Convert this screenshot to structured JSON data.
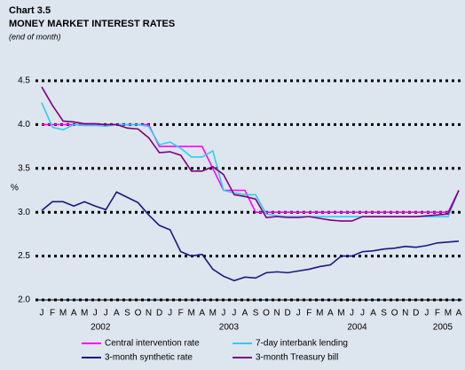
{
  "chart_data": {
    "type": "line",
    "title": "Chart 3.5",
    "subtitle": "MONEY MARKET INTEREST RATES",
    "note": "(end of month)",
    "y_label": "%",
    "categories": [
      "J",
      "F",
      "M",
      "A",
      "M",
      "J",
      "J",
      "A",
      "S",
      "O",
      "N",
      "D",
      "J",
      "F",
      "M",
      "A",
      "M",
      "J",
      "J",
      "A",
      "S",
      "O",
      "N",
      "D",
      "J",
      "F",
      "M",
      "A",
      "M",
      "J",
      "J",
      "A",
      "S",
      "O",
      "N",
      "D",
      "J",
      "F",
      "M",
      "A"
    ],
    "years": [
      {
        "label": "2002",
        "at": 5.5
      },
      {
        "label": "2003",
        "at": 17.5
      },
      {
        "label": "2004",
        "at": 29.5
      },
      {
        "label": "2005",
        "at": 37.5
      }
    ],
    "ylim": [
      2.0,
      4.5
    ],
    "yticks": [
      {
        "value": 2.0,
        "label": "2.0"
      },
      {
        "value": 2.5,
        "label": "2.5"
      },
      {
        "value": 3.0,
        "label": "3.0"
      },
      {
        "value": 3.5,
        "label": "3.5"
      },
      {
        "value": 4.0,
        "label": "4.0"
      },
      {
        "value": 4.5,
        "label": "4.5"
      }
    ],
    "grid": true,
    "series": [
      {
        "name": "Central intervention rate",
        "color": "#ff00ff",
        "values": [
          4.0,
          4.0,
          4.0,
          4.0,
          4.0,
          4.0,
          4.0,
          4.0,
          4.0,
          4.0,
          4.0,
          3.75,
          3.75,
          3.75,
          3.75,
          3.75,
          3.5,
          3.25,
          3.25,
          3.25,
          3.0,
          3.0,
          3.0,
          3.0,
          3.0,
          3.0,
          3.0,
          3.0,
          3.0,
          3.0,
          3.0,
          3.0,
          3.0,
          3.0,
          3.0,
          3.0,
          3.0,
          3.0,
          3.0,
          3.25
        ]
      },
      {
        "name": "7-day interbank lending",
        "color": "#33ccee",
        "values": [
          4.25,
          3.97,
          3.94,
          4.0,
          3.99,
          3.99,
          3.98,
          4.0,
          4.0,
          4.0,
          3.98,
          3.77,
          3.8,
          3.73,
          3.63,
          3.63,
          3.7,
          3.25,
          3.22,
          3.2,
          3.2,
          2.98,
          2.96,
          2.95,
          2.95,
          2.95,
          2.95,
          2.95,
          2.95,
          2.95,
          2.95,
          2.95,
          2.95,
          2.95,
          2.95,
          2.95,
          2.95,
          2.95,
          2.95,
          3.25
        ]
      },
      {
        "name": "3-month synthetic rate",
        "color": "#1a1a80",
        "values": [
          3.02,
          3.12,
          3.12,
          3.07,
          3.12,
          3.07,
          3.03,
          3.23,
          3.17,
          3.11,
          2.97,
          2.85,
          2.8,
          2.55,
          2.5,
          2.52,
          2.35,
          2.27,
          2.22,
          2.26,
          2.25,
          2.31,
          2.32,
          2.31,
          2.33,
          2.35,
          2.38,
          2.4,
          2.5,
          2.5,
          2.55,
          2.56,
          2.58,
          2.59,
          2.61,
          2.6,
          2.62,
          2.65,
          2.66,
          2.67
        ]
      },
      {
        "name": "3-month Treasury bill",
        "color": "#800080",
        "values": [
          4.43,
          4.22,
          4.04,
          4.03,
          4.01,
          4.01,
          4.0,
          4.0,
          3.96,
          3.95,
          3.85,
          3.68,
          3.69,
          3.65,
          3.47,
          3.47,
          3.52,
          3.43,
          3.2,
          3.18,
          3.15,
          2.94,
          2.95,
          2.94,
          2.94,
          2.95,
          2.93,
          2.91,
          2.9,
          2.9,
          2.95,
          2.95,
          2.95,
          2.95,
          2.95,
          2.95,
          2.96,
          2.97,
          2.98,
          3.25
        ]
      }
    ]
  }
}
